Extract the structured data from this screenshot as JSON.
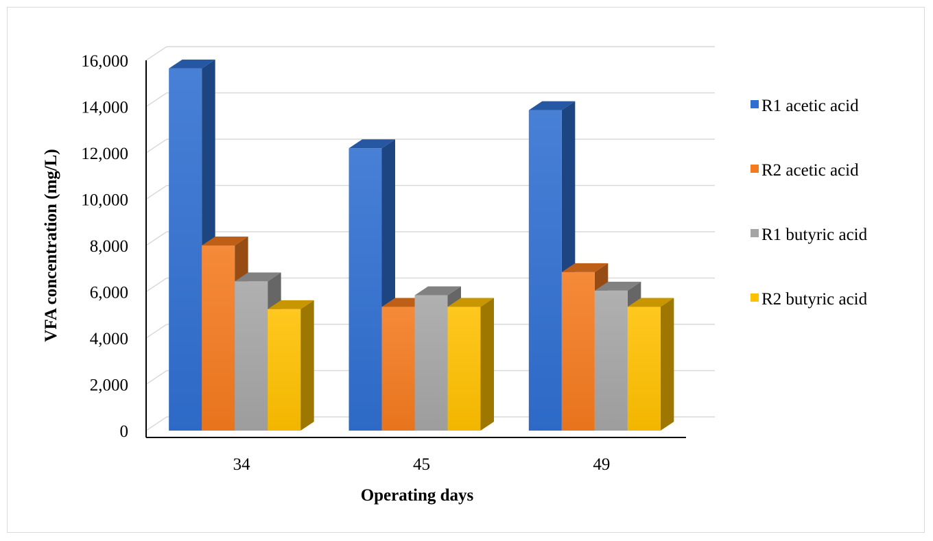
{
  "chart_data": {
    "type": "bar",
    "title": "",
    "xlabel": "Operating days",
    "ylabel": "VFA concentration (mg/L)",
    "categories": [
      "34",
      "45",
      "49"
    ],
    "ylim": [
      0,
      16000
    ],
    "yticks": [
      "0",
      "2,000",
      "4,000",
      "6,000",
      "8,000",
      "10,000",
      "12,000",
      "14,000",
      "16,000"
    ],
    "grid": true,
    "style": "3d-column",
    "legend_position": "right",
    "series": [
      {
        "name": "R1 acetic acid",
        "color": "#2f6fd0",
        "values": [
          15650,
          12200,
          13850
        ]
      },
      {
        "name": "R2 acetic acid",
        "color": "#f47a1f",
        "values": [
          8000,
          5350,
          6850
        ]
      },
      {
        "name": "R1 butyric acid",
        "color": "#a5a5a5",
        "values": [
          6450,
          5850,
          6050
        ]
      },
      {
        "name": "R2 butyric acid",
        "color": "#ffc000",
        "values": [
          5250,
          5350,
          5350
        ]
      }
    ]
  }
}
